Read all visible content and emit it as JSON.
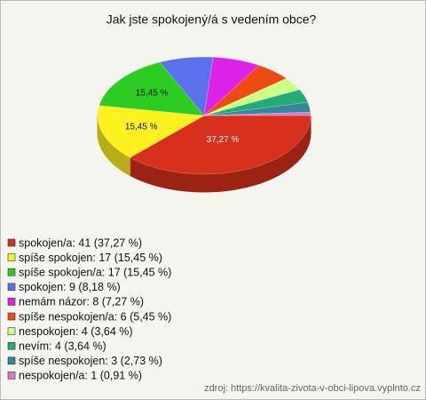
{
  "chart_data": {
    "type": "pie",
    "title": "Jak jste spokojený/á s vedením obce?",
    "categories": [
      "spokojen/a: 41 (37,27 %)",
      "spíše spokojen: 17 (15,45 %)",
      "spíše spokojen/a: 17 (15,45 %)",
      "spokojen: 9 (8,18 %)",
      "nemám názor: 8 (7,27 %)",
      "spíše nespokojen/a: 6 (5,45 %)",
      "nespokojen: 4 (3,64 %)",
      "nevím: 4 (3,64 %)",
      "spíše nespokojen: 3 (2,73 %)",
      "nespokojen/a: 1 (0,91 %)"
    ],
    "values": [
      37.27,
      15.45,
      15.45,
      8.18,
      7.27,
      5.45,
      3.64,
      3.64,
      2.73,
      0.91
    ],
    "value_labels": [
      "37,27 %",
      "15,45 %",
      "15,45 %",
      null,
      null,
      null,
      null,
      null,
      null,
      null
    ],
    "colors": [
      "#d8301c",
      "#fff020",
      "#2ccc22",
      "#5a70ec",
      "#dc22e6",
      "#ee4a14",
      "#ccff88",
      "#22aa77",
      "#338899",
      "#dd77cc"
    ],
    "source": "zdroj: https://kvalita-zivota-v-obci-lipova.vyplnto.cz"
  }
}
